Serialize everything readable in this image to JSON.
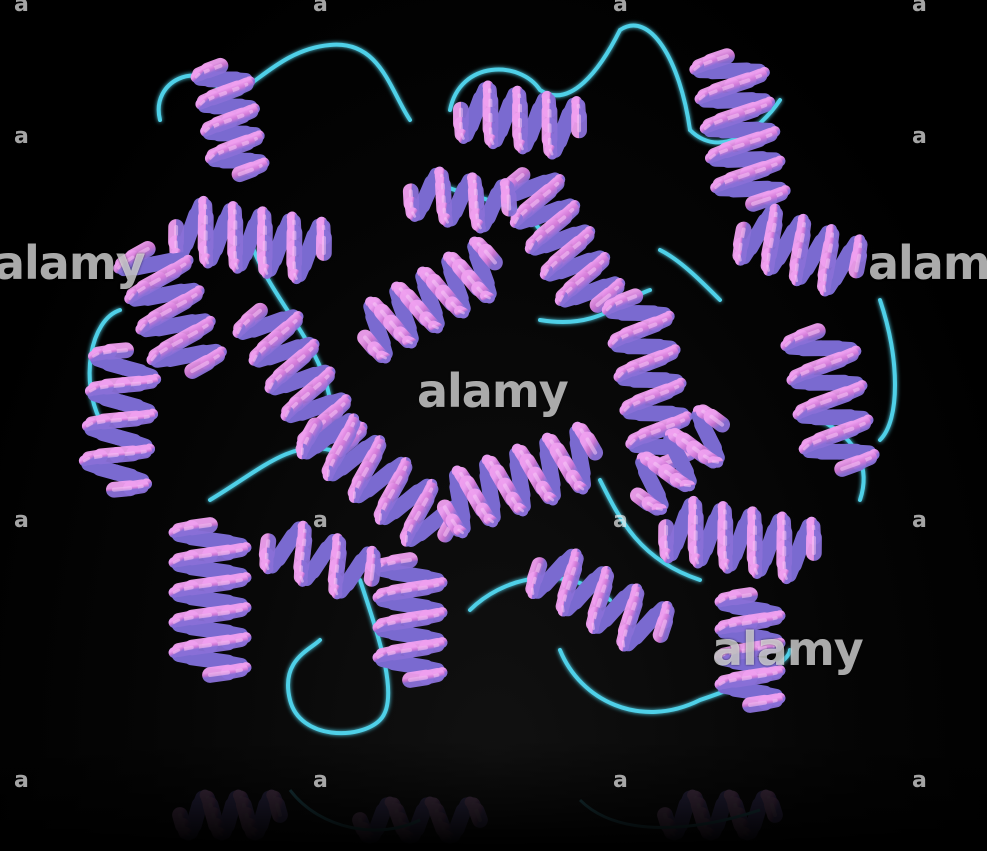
{
  "image": {
    "subject": "protein-ribbon-model",
    "colors": {
      "background": "#000000",
      "helix_face": "#e58ae8",
      "helix_back": "#7a6ad0",
      "coil": "#4fd0e8"
    }
  },
  "watermarks": {
    "center": "alamy",
    "left": "alamy",
    "right": "alamy",
    "bottom_right": "alamy",
    "corner_mark": "a"
  }
}
